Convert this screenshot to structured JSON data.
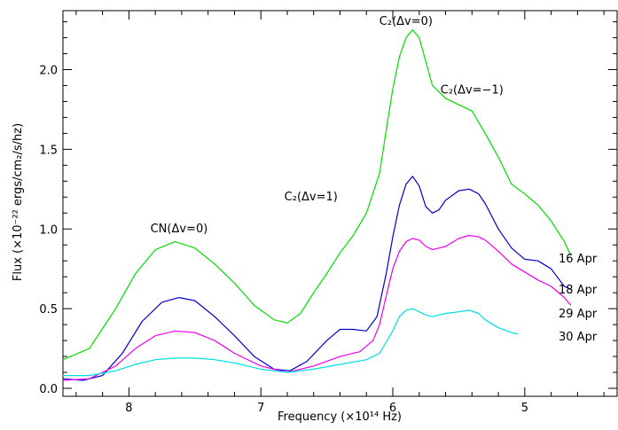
{
  "chart_data": {
    "type": "line",
    "title": "",
    "xlabel": "Frequency (×10¹⁴ Hz)",
    "ylabel": "Flux (×10⁻²² ergs/cm₂/s/hz)",
    "xlim": [
      8.5,
      4.3
    ],
    "ylim": [
      -0.05,
      2.37
    ],
    "x_reversed": true,
    "xticks": [
      8,
      7,
      6,
      5
    ],
    "xtick_labels": [
      "8",
      "7",
      "6",
      "5"
    ],
    "yticks": [
      0.0,
      0.5,
      1.0,
      1.5,
      2.0
    ],
    "ytick_labels": [
      "0.0",
      "0.5",
      "1.0",
      "1.5",
      "2.0"
    ],
    "grid": false,
    "series": [
      {
        "name": "16 Apr",
        "color": "#00dd00",
        "x": [
          8.5,
          8.3,
          8.1,
          7.95,
          7.8,
          7.65,
          7.5,
          7.35,
          7.2,
          7.05,
          6.9,
          6.8,
          6.7,
          6.6,
          6.5,
          6.4,
          6.3,
          6.2,
          6.1,
          6.05,
          6.0,
          5.95,
          5.9,
          5.85,
          5.8,
          5.75,
          5.7,
          5.6,
          5.5,
          5.4,
          5.3,
          5.2,
          5.1,
          5.0,
          4.9,
          4.8,
          4.7,
          4.65
        ],
        "values": [
          0.18,
          0.25,
          0.5,
          0.72,
          0.87,
          0.92,
          0.88,
          0.78,
          0.66,
          0.52,
          0.43,
          0.41,
          0.47,
          0.6,
          0.72,
          0.85,
          0.96,
          1.1,
          1.35,
          1.62,
          1.88,
          2.08,
          2.2,
          2.25,
          2.2,
          2.05,
          1.9,
          1.82,
          1.78,
          1.74,
          1.6,
          1.45,
          1.28,
          1.22,
          1.15,
          1.05,
          0.92,
          0.83
        ]
      },
      {
        "name": "18 Apr",
        "color": "#0000cc",
        "x": [
          8.5,
          8.35,
          8.2,
          8.05,
          7.9,
          7.75,
          7.62,
          7.5,
          7.35,
          7.2,
          7.05,
          6.9,
          6.78,
          6.65,
          6.5,
          6.4,
          6.3,
          6.2,
          6.12,
          6.05,
          6.0,
          5.95,
          5.9,
          5.85,
          5.8,
          5.75,
          5.7,
          5.65,
          5.6,
          5.5,
          5.42,
          5.35,
          5.3,
          5.2,
          5.1,
          5.0,
          4.9,
          4.8,
          4.7,
          4.65
        ],
        "values": [
          0.06,
          0.05,
          0.08,
          0.22,
          0.42,
          0.54,
          0.57,
          0.55,
          0.45,
          0.33,
          0.2,
          0.12,
          0.11,
          0.17,
          0.3,
          0.37,
          0.37,
          0.36,
          0.45,
          0.72,
          0.95,
          1.15,
          1.28,
          1.33,
          1.27,
          1.14,
          1.1,
          1.12,
          1.18,
          1.24,
          1.25,
          1.22,
          1.16,
          1.0,
          0.88,
          0.81,
          0.8,
          0.75,
          0.64,
          0.62
        ]
      },
      {
        "name": "29 Apr",
        "color": "#ee00ee",
        "x": [
          8.5,
          8.3,
          8.1,
          7.95,
          7.8,
          7.65,
          7.5,
          7.35,
          7.2,
          7.0,
          6.8,
          6.6,
          6.4,
          6.25,
          6.15,
          6.1,
          6.05,
          6.0,
          5.95,
          5.9,
          5.85,
          5.8,
          5.75,
          5.7,
          5.6,
          5.5,
          5.42,
          5.35,
          5.3,
          5.2,
          5.1,
          5.0,
          4.9,
          4.8,
          4.7,
          4.65
        ],
        "values": [
          0.05,
          0.06,
          0.14,
          0.25,
          0.33,
          0.36,
          0.35,
          0.3,
          0.22,
          0.14,
          0.1,
          0.14,
          0.2,
          0.23,
          0.3,
          0.4,
          0.58,
          0.75,
          0.86,
          0.92,
          0.94,
          0.93,
          0.89,
          0.87,
          0.89,
          0.94,
          0.96,
          0.95,
          0.93,
          0.86,
          0.78,
          0.73,
          0.68,
          0.64,
          0.57,
          0.52
        ]
      },
      {
        "name": "30 Apr",
        "color": "#00dddd",
        "x": [
          8.5,
          8.3,
          8.1,
          7.95,
          7.8,
          7.65,
          7.5,
          7.35,
          7.2,
          7.0,
          6.8,
          6.6,
          6.4,
          6.2,
          6.1,
          6.0,
          5.95,
          5.9,
          5.85,
          5.8,
          5.75,
          5.7,
          5.6,
          5.5,
          5.42,
          5.35,
          5.3,
          5.2,
          5.1,
          5.05
        ],
        "values": [
          0.08,
          0.08,
          0.11,
          0.15,
          0.18,
          0.19,
          0.19,
          0.18,
          0.16,
          0.12,
          0.1,
          0.12,
          0.15,
          0.18,
          0.22,
          0.36,
          0.45,
          0.49,
          0.5,
          0.48,
          0.46,
          0.45,
          0.47,
          0.48,
          0.49,
          0.47,
          0.43,
          0.38,
          0.35,
          0.34
        ]
      }
    ],
    "annotations": [
      {
        "text": "CN(Δv=0)",
        "x": 7.62,
        "y": 0.98
      },
      {
        "text": "C₂(Δv=1)",
        "x": 6.62,
        "y": 1.18
      },
      {
        "text": "C₂(Δv=0)",
        "x": 5.9,
        "y": 2.28
      },
      {
        "text": "C₂(Δv=−1)",
        "x": 5.4,
        "y": 1.85
      }
    ],
    "legend_placement": "right-end-of-lines"
  }
}
